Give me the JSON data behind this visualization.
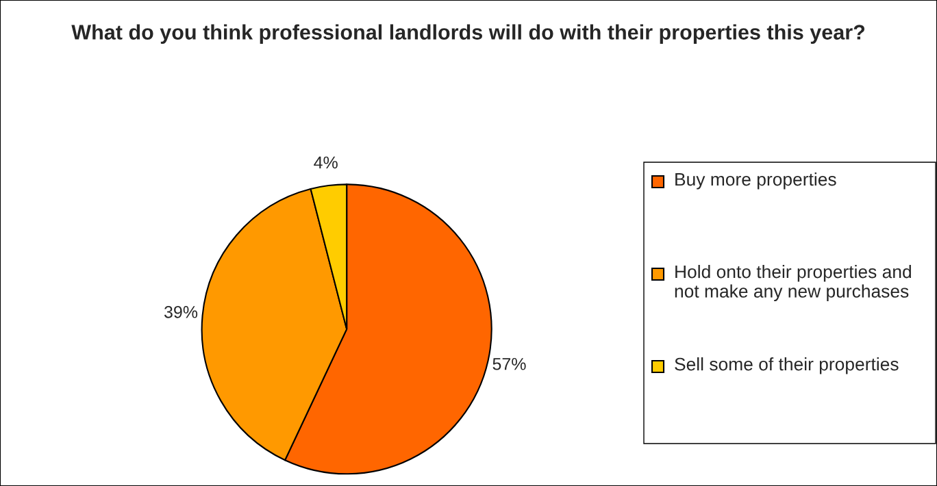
{
  "chart_data": {
    "type": "pie",
    "title": "What do you think professional landlords will do with their properties this year?",
    "categories": [
      "Buy more properties",
      "Hold onto their properties and not make any new purchases",
      "Sell some of their properties"
    ],
    "values": [
      57,
      39,
      4
    ],
    "colors": [
      "#ff6600",
      "#ff9900",
      "#ffcc00"
    ],
    "value_labels": [
      "57%",
      "39%",
      "4%"
    ],
    "legend": "right"
  }
}
